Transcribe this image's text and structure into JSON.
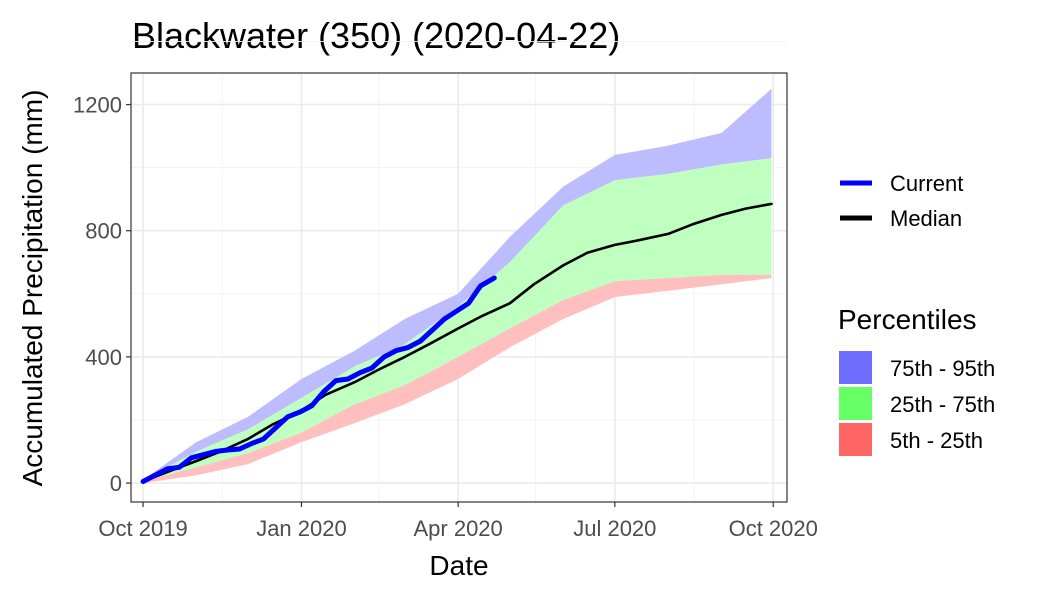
{
  "chart_data": {
    "type": "area",
    "title": "Blackwater (350) (2020-04-22)",
    "xlabel": "Date",
    "ylabel": "Accumulated Precipitation (mm)",
    "xlim": [
      "2019-09-24",
      "2020-10-09"
    ],
    "ylim": [
      -60,
      1300
    ],
    "x_ticks": [
      {
        "date": "2019-10-01",
        "label": "Oct 2019"
      },
      {
        "date": "2020-01-01",
        "label": "Jan 2020"
      },
      {
        "date": "2020-04-01",
        "label": "Apr 2020"
      },
      {
        "date": "2020-07-01",
        "label": "Jul 2020"
      },
      {
        "date": "2020-10-01",
        "label": "Oct 2020"
      }
    ],
    "y_ticks": [
      0,
      400,
      800,
      1200
    ],
    "grid": true,
    "legend": {
      "lines_title": "",
      "bands_title": "Percentiles",
      "placement": "right"
    },
    "series": [
      {
        "name": "Current",
        "kind": "line",
        "color": "#0000ff",
        "points": [
          [
            "2019-10-01",
            5
          ],
          [
            "2019-10-08",
            25
          ],
          [
            "2019-10-15",
            45
          ],
          [
            "2019-10-22",
            50
          ],
          [
            "2019-10-29",
            80
          ],
          [
            "2019-11-05",
            90
          ],
          [
            "2019-11-12",
            100
          ],
          [
            "2019-11-19",
            105
          ],
          [
            "2019-11-26",
            108
          ],
          [
            "2019-12-03",
            125
          ],
          [
            "2019-12-10",
            140
          ],
          [
            "2019-12-17",
            175
          ],
          [
            "2019-12-24",
            210
          ],
          [
            "2019-12-31",
            225
          ],
          [
            "2020-01-07",
            245
          ],
          [
            "2020-01-14",
            290
          ],
          [
            "2020-01-21",
            325
          ],
          [
            "2020-01-28",
            330
          ],
          [
            "2020-02-04",
            350
          ],
          [
            "2020-02-11",
            365
          ],
          [
            "2020-02-18",
            400
          ],
          [
            "2020-02-25",
            420
          ],
          [
            "2020-03-03",
            430
          ],
          [
            "2020-03-10",
            450
          ],
          [
            "2020-03-17",
            485
          ],
          [
            "2020-03-24",
            520
          ],
          [
            "2020-03-31",
            545
          ],
          [
            "2020-04-07",
            570
          ],
          [
            "2020-04-14",
            625
          ],
          [
            "2020-04-22",
            650
          ]
        ]
      },
      {
        "name": "Median",
        "kind": "line",
        "color": "#000000",
        "points": [
          [
            "2019-10-01",
            5
          ],
          [
            "2019-10-15",
            35
          ],
          [
            "2019-11-01",
            70
          ],
          [
            "2019-11-15",
            100
          ],
          [
            "2019-12-01",
            140
          ],
          [
            "2019-12-15",
            185
          ],
          [
            "2020-01-01",
            230
          ],
          [
            "2020-01-15",
            280
          ],
          [
            "2020-02-01",
            320
          ],
          [
            "2020-02-15",
            360
          ],
          [
            "2020-03-01",
            400
          ],
          [
            "2020-03-15",
            440
          ],
          [
            "2020-04-01",
            490
          ],
          [
            "2020-04-15",
            530
          ],
          [
            "2020-05-01",
            570
          ],
          [
            "2020-05-15",
            630
          ],
          [
            "2020-06-01",
            690
          ],
          [
            "2020-06-15",
            730
          ],
          [
            "2020-07-01",
            755
          ],
          [
            "2020-07-15",
            770
          ],
          [
            "2020-08-01",
            790
          ],
          [
            "2020-08-15",
            820
          ],
          [
            "2020-09-01",
            850
          ],
          [
            "2020-09-15",
            870
          ],
          [
            "2020-09-30",
            885
          ]
        ]
      }
    ],
    "bands": [
      {
        "name": "75th - 95th",
        "color": "#6f6fff",
        "fill": "#bcbcff",
        "x": [
          "2019-10-01",
          "2019-11-01",
          "2019-12-01",
          "2020-01-01",
          "2020-02-01",
          "2020-03-01",
          "2020-04-01",
          "2020-05-01",
          "2020-06-01",
          "2020-07-01",
          "2020-08-01",
          "2020-09-01",
          "2020-09-30"
        ],
        "lower": [
          10,
          100,
          170,
          270,
          370,
          440,
          560,
          700,
          880,
          960,
          980,
          1010,
          1030
        ],
        "upper": [
          10,
          130,
          210,
          330,
          420,
          520,
          600,
          780,
          940,
          1040,
          1070,
          1110,
          1250
        ]
      },
      {
        "name": "25th - 75th",
        "color": "#66ff66",
        "fill": "#bfffbf",
        "x": [
          "2019-10-01",
          "2019-11-01",
          "2019-12-01",
          "2020-01-01",
          "2020-02-01",
          "2020-03-01",
          "2020-04-01",
          "2020-05-01",
          "2020-06-01",
          "2020-07-01",
          "2020-08-01",
          "2020-09-01",
          "2020-09-30"
        ],
        "lower": [
          5,
          50,
          95,
          160,
          250,
          310,
          400,
          490,
          580,
          640,
          650,
          660,
          660
        ],
        "upper": [
          10,
          100,
          170,
          270,
          370,
          440,
          560,
          700,
          880,
          960,
          980,
          1010,
          1030
        ]
      },
      {
        "name": "5th - 25th",
        "color": "#ff6666",
        "fill": "#ffbfbf",
        "x": [
          "2019-10-01",
          "2019-11-01",
          "2019-12-01",
          "2020-01-01",
          "2020-02-01",
          "2020-03-01",
          "2020-04-01",
          "2020-05-01",
          "2020-06-01",
          "2020-07-01",
          "2020-08-01",
          "2020-09-01",
          "2020-09-30"
        ],
        "lower": [
          0,
          25,
          60,
          130,
          190,
          250,
          330,
          430,
          520,
          590,
          610,
          630,
          650
        ],
        "upper": [
          5,
          50,
          95,
          160,
          250,
          310,
          400,
          490,
          580,
          640,
          650,
          660,
          660
        ]
      }
    ]
  }
}
